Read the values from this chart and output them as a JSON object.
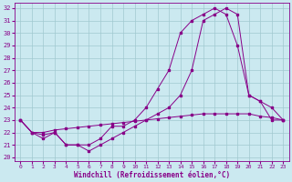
{
  "xlabel": "Windchill (Refroidissement éolien,°C)",
  "bg_color": "#cbe9f0",
  "grid_color": "#a0c8d0",
  "line_color": "#880088",
  "xlim": [
    -0.5,
    23.5
  ],
  "ylim": [
    19.7,
    32.4
  ],
  "yticks": [
    20,
    21,
    22,
    23,
    24,
    25,
    26,
    27,
    28,
    29,
    30,
    31,
    32
  ],
  "xticks": [
    0,
    1,
    2,
    3,
    4,
    5,
    6,
    7,
    8,
    9,
    10,
    11,
    12,
    13,
    14,
    15,
    16,
    17,
    18,
    19,
    20,
    21,
    22,
    23
  ],
  "line1_x": [
    0,
    1,
    2,
    3,
    4,
    5,
    6,
    7,
    8,
    9,
    10,
    11,
    12,
    13,
    14,
    15,
    16,
    17,
    18,
    19,
    20,
    21,
    22,
    23
  ],
  "line1_y": [
    23,
    22,
    22,
    22.2,
    22.3,
    22.4,
    22.5,
    22.6,
    22.7,
    22.8,
    22.9,
    23.0,
    23.1,
    23.2,
    23.3,
    23.4,
    23.5,
    23.5,
    23.5,
    23.5,
    23.5,
    23.3,
    23.2,
    23.0
  ],
  "line2_x": [
    0,
    1,
    2,
    3,
    4,
    5,
    6,
    7,
    8,
    9,
    10,
    11,
    12,
    13,
    14,
    15,
    16,
    17,
    18,
    19,
    20,
    21,
    22,
    23
  ],
  "line2_y": [
    23,
    22,
    21.8,
    22,
    21,
    21,
    20.5,
    21,
    21.5,
    22,
    22.5,
    23,
    23.5,
    24,
    25,
    27,
    31,
    31.5,
    32,
    31.5,
    25,
    24.5,
    24,
    23
  ],
  "line3_x": [
    0,
    1,
    2,
    3,
    4,
    5,
    6,
    7,
    8,
    9,
    10,
    11,
    12,
    13,
    14,
    15,
    16,
    17,
    18,
    19,
    20,
    21,
    22,
    23
  ],
  "line3_y": [
    23,
    22,
    21.5,
    22,
    21,
    21,
    21,
    21.5,
    22.5,
    22.5,
    23,
    24,
    25.5,
    27,
    30,
    31,
    31.5,
    32,
    31.5,
    29,
    25,
    24.5,
    23,
    23
  ]
}
